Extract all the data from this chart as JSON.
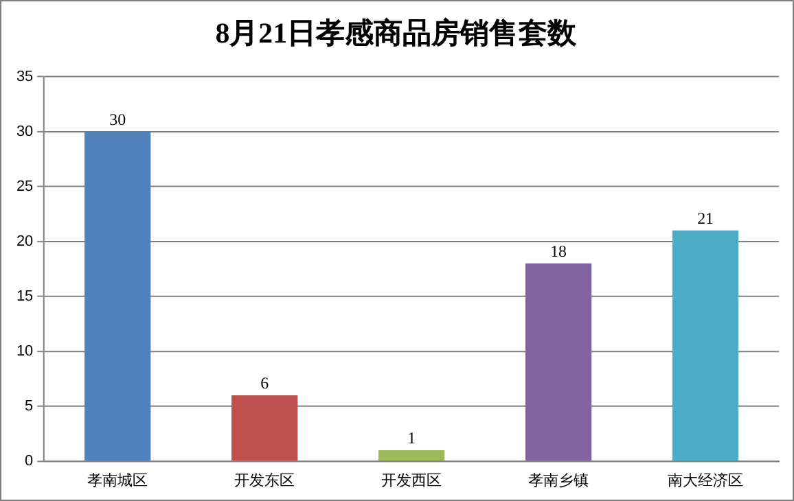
{
  "chart_data": {
    "type": "bar",
    "title": "8月21日孝感商品房销售套数",
    "categories": [
      "孝南城区",
      "开发东区",
      "开发西区",
      "孝南乡镇",
      "南大经济区"
    ],
    "values": [
      30,
      6,
      1,
      18,
      21
    ],
    "colors": [
      "#4f81bd",
      "#c0504d",
      "#9bbb59",
      "#8064a2",
      "#4bacc6"
    ],
    "ylim": [
      0,
      35
    ],
    "yticks": [
      0,
      5,
      10,
      15,
      20,
      25,
      30,
      35
    ],
    "grid": "y",
    "legend": false,
    "data_labels": true
  }
}
